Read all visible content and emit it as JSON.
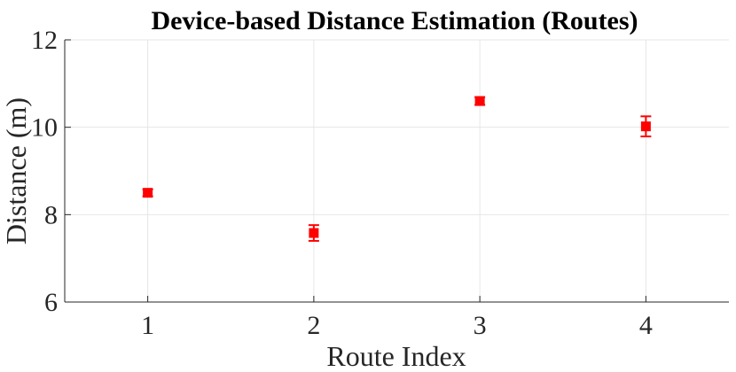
{
  "chart_data": {
    "type": "scatter",
    "title": "Device-based Distance Estimation (Routes)",
    "xlabel": "Route Index",
    "ylabel": "Distance (m)",
    "xlim": [
      0.5,
      4.5
    ],
    "ylim": [
      6,
      12
    ],
    "xticks": [
      "1",
      "2",
      "3",
      "4"
    ],
    "yticks": [
      "6",
      "8",
      "10",
      "12"
    ],
    "grid": true,
    "marker": "square",
    "colors": {
      "marker": "#ff0000",
      "grid": "#e6e6e6",
      "axis": "#262626"
    },
    "series": [
      {
        "x": [
          1,
          2,
          3,
          4
        ],
        "y": [
          8.5,
          7.58,
          10.6,
          10.02
        ],
        "error": [
          0.08,
          0.18,
          0.09,
          0.23
        ]
      }
    ]
  }
}
